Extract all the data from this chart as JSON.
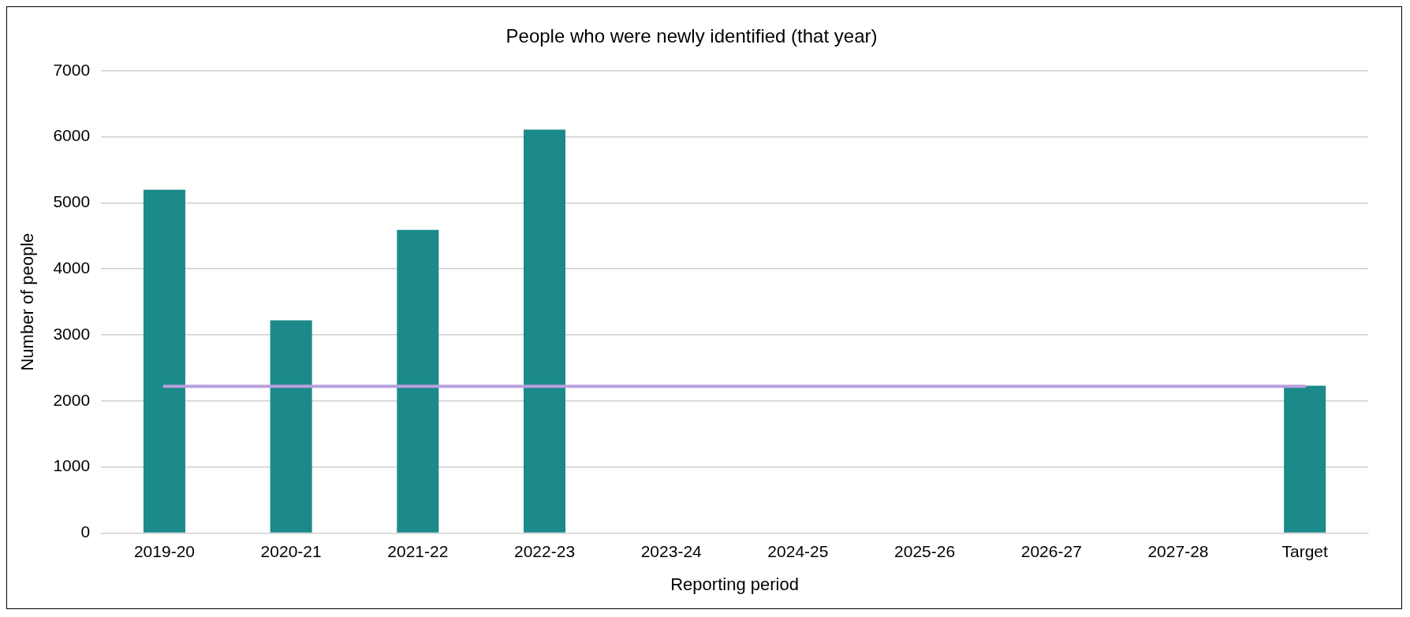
{
  "chart_data": {
    "type": "bar",
    "title": "People who were newly identified (that year)",
    "xlabel": "Reporting period",
    "ylabel": "Number of people",
    "categories": [
      "2019-20",
      "2020-21",
      "2021-22",
      "2022-23",
      "2023-24",
      "2024-25",
      "2025-26",
      "2026-27",
      "2027-28",
      "Target"
    ],
    "series": [
      {
        "color": "#1c8a8a",
        "values": [
          5200,
          3220,
          4590,
          6110,
          null,
          null,
          null,
          null,
          null,
          2230
        ]
      },
      {
        "type": "line",
        "color": "#b8a0dc",
        "values": [
          2220,
          2220,
          2220,
          2220,
          2220,
          2220,
          2220,
          2220,
          2220,
          2220
        ]
      }
    ],
    "ylim": [
      0,
      7000
    ],
    "yticks": [
      0,
      1000,
      2000,
      3000,
      4000,
      5000,
      6000,
      7000
    ],
    "grid": "y",
    "legend": false,
    "marker": "none",
    "line_style": "solid"
  }
}
